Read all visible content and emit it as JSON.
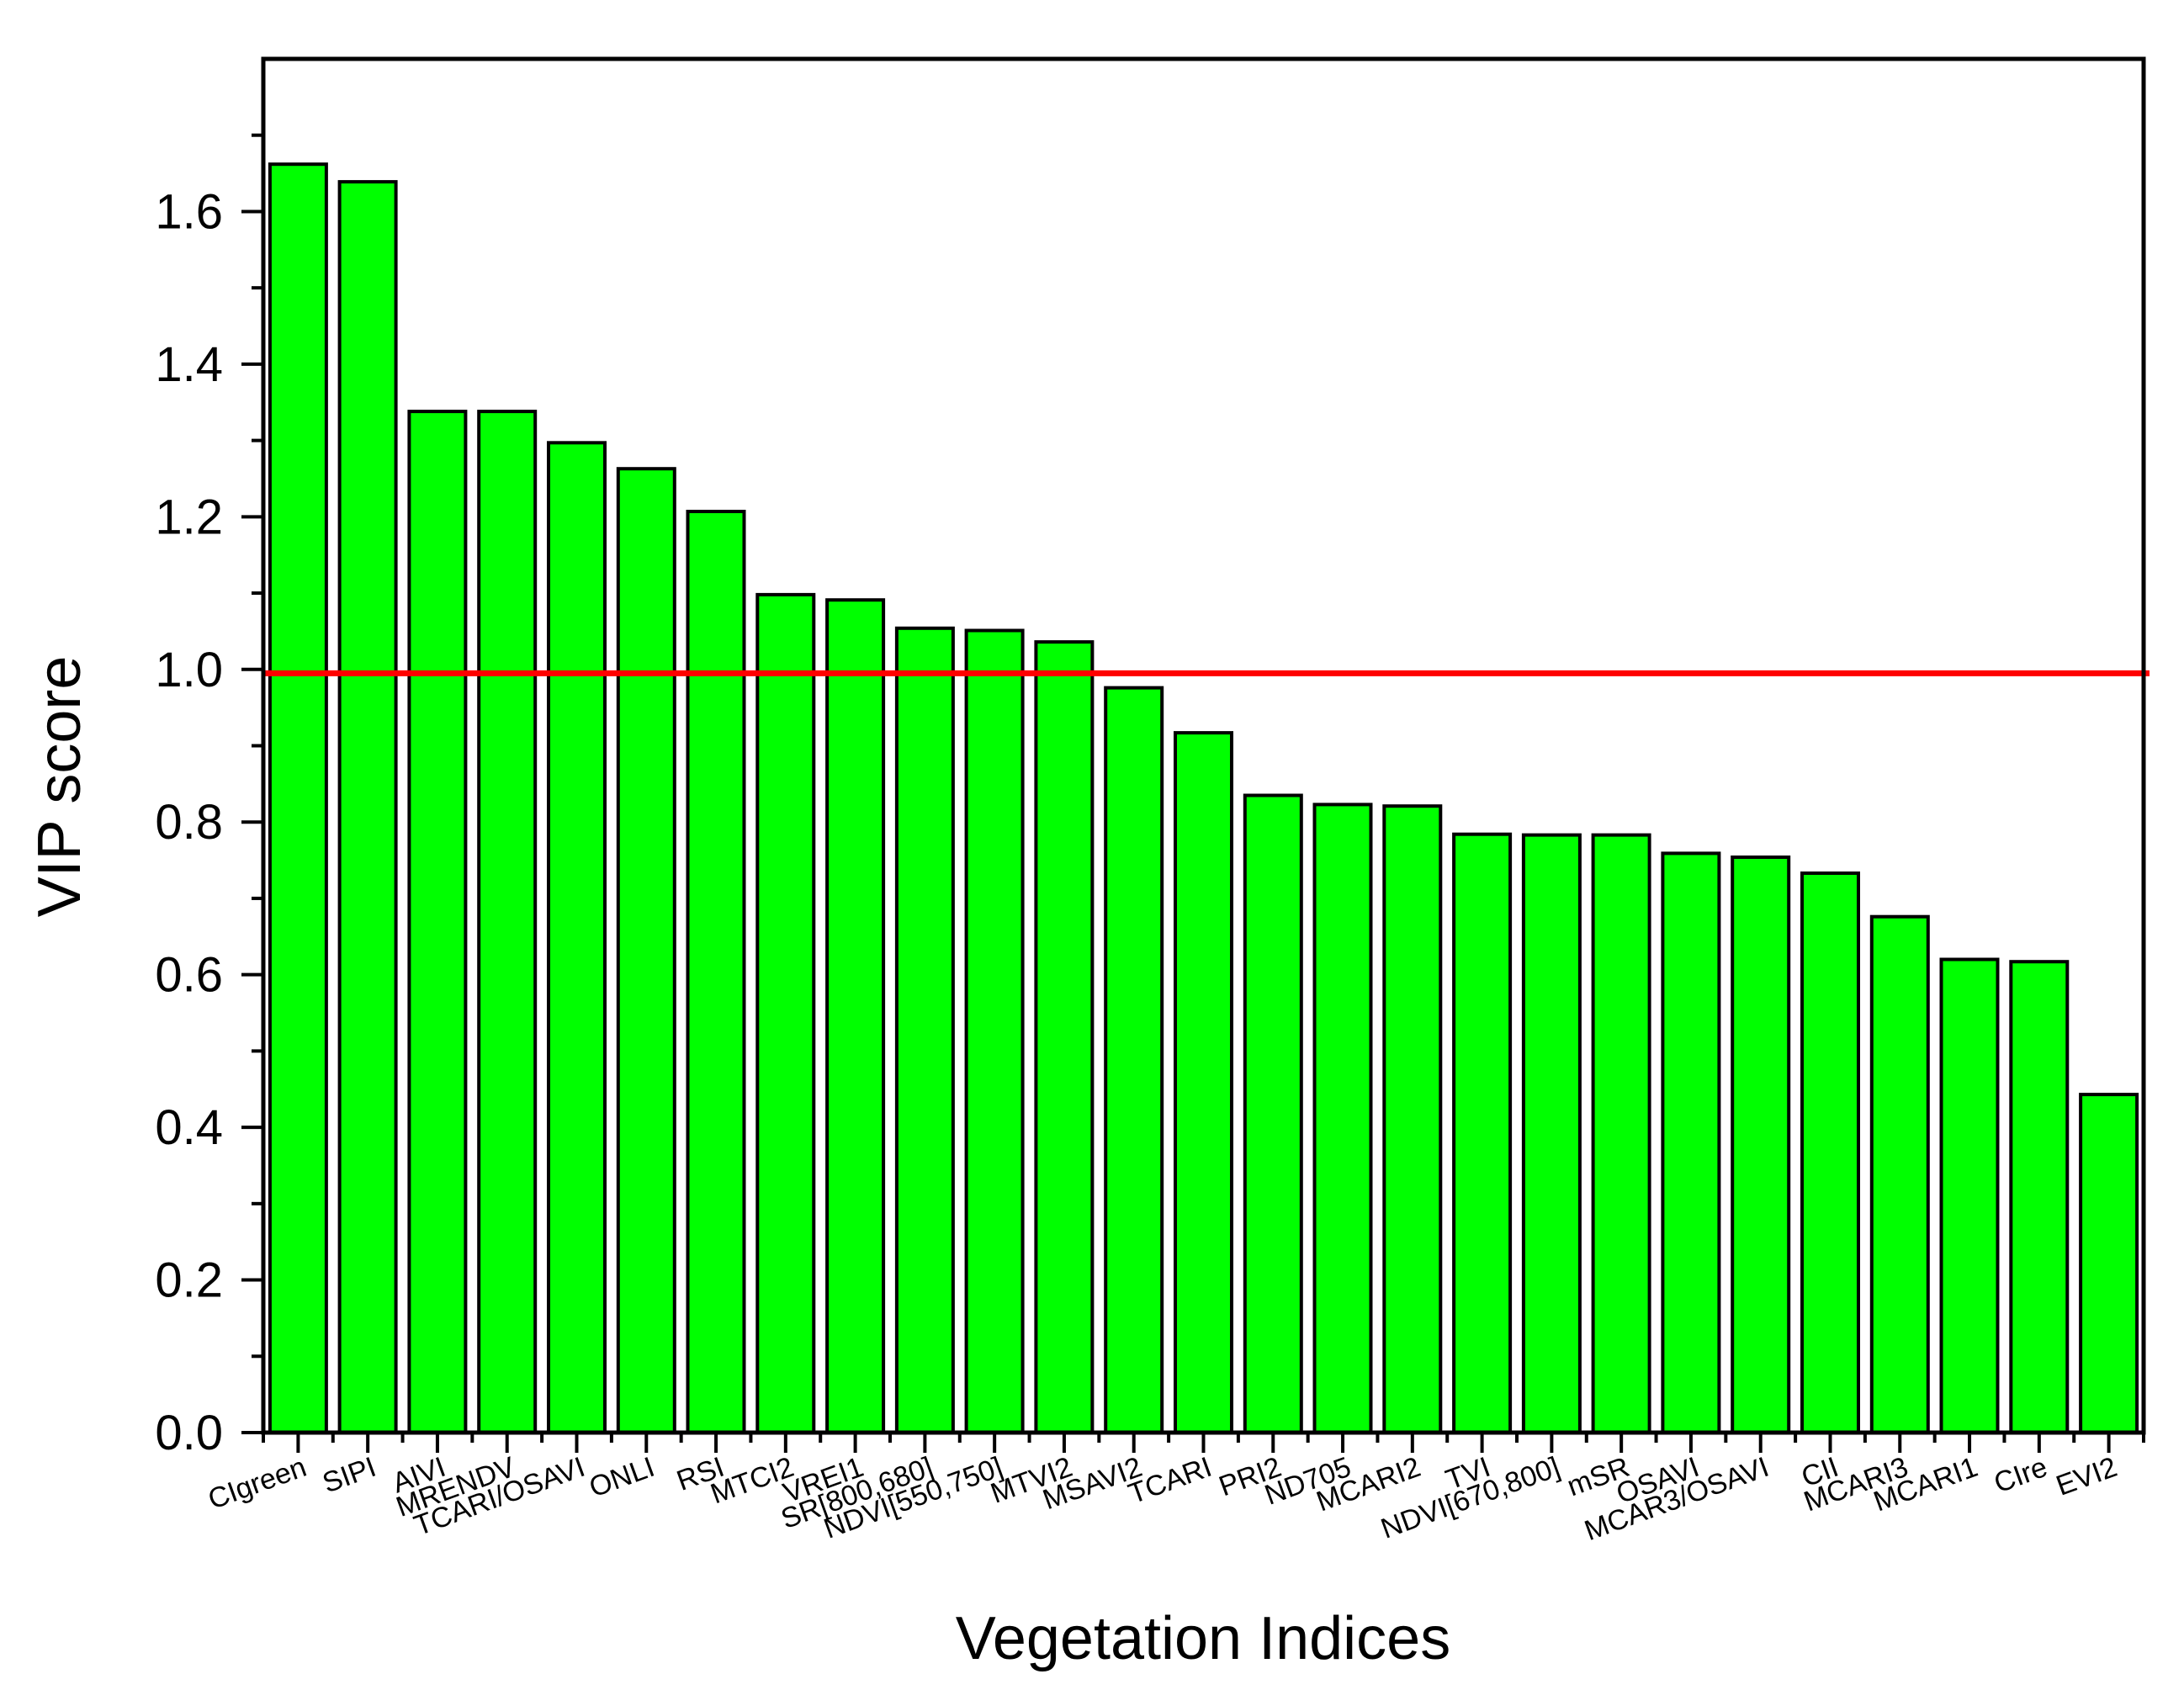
{
  "chart_data": {
    "type": "bar",
    "title": "",
    "xlabel": "Vegetation Indices",
    "ylabel": "VIP score",
    "ylim": [
      0,
      1.8
    ],
    "yticks": [
      "0.0",
      "0.2",
      "0.4",
      "0.6",
      "0.8",
      "1.0",
      "1.2",
      "1.4",
      "1.6"
    ],
    "grid": false,
    "reference_line": {
      "y": 0.995,
      "color": "#ff0000"
    },
    "bar_color": "#00ff00",
    "bar_edge_color": "#000000",
    "categories": [
      "CIgreen",
      "SIPI",
      "AIVI",
      "MRENDV",
      "TCARI/OSAVI",
      "ONLI",
      "RSI",
      "MTCI2",
      "VREI1",
      "SR[800,680]",
      "NDVI[550,750]",
      "MTVI2",
      "MSAVI2",
      "TCARI",
      "PRI2",
      "ND705",
      "MCARI2",
      "TVI",
      "NDVI[670,800]",
      "mSR",
      "OSAVI",
      "MCAR3/OSAVI",
      "CII",
      "MCARI3",
      "MCARI1",
      "CIre",
      "EVI2"
    ],
    "values": [
      1.662,
      1.639,
      1.338,
      1.338,
      1.297,
      1.263,
      1.207,
      1.098,
      1.091,
      1.054,
      1.051,
      1.036,
      0.976,
      0.917,
      0.835,
      0.823,
      0.821,
      0.784,
      0.783,
      0.783,
      0.759,
      0.754,
      0.733,
      0.676,
      0.62,
      0.617,
      0.443
    ]
  }
}
